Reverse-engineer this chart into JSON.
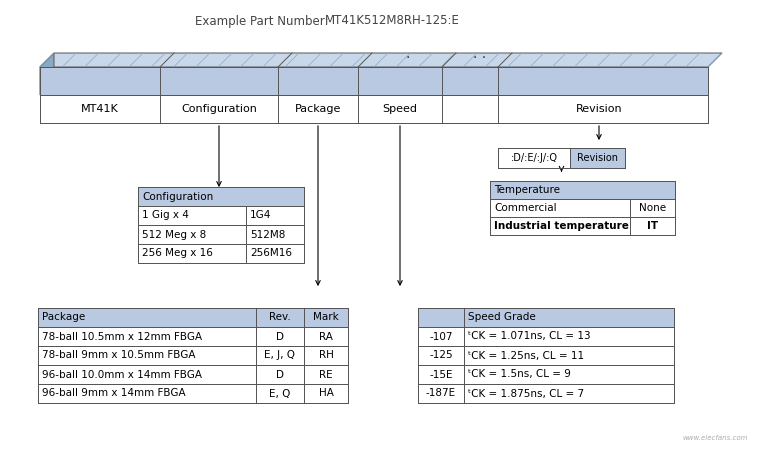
{
  "title_label": "Example Part Number:",
  "title_part": "MT41K512M8RH-125:E",
  "bg_color": "#ffffff",
  "header_fill": "#b8c9e1",
  "cell_fill": "#ffffff",
  "border_color": "#555555",
  "top_bar_segments": [
    "MT41K",
    "Configuration",
    "Package",
    "Speed",
    "",
    "Revision"
  ],
  "seg_positions": [
    0,
    120,
    238,
    318,
    402,
    458,
    660
  ],
  "revision_box_left": ":D/:E/:J/:Q",
  "revision_box_right": "Revision",
  "config_header": "Configuration",
  "config_rows": [
    [
      "1 Gig x 4",
      "1G4"
    ],
    [
      "512 Meg x 8",
      "512M8"
    ],
    [
      "256 Meg x 16",
      "256M16"
    ]
  ],
  "temp_header": "Temperature",
  "temp_rows": [
    [
      "Commercial",
      "None"
    ],
    [
      "Industrial temperature",
      "IT"
    ]
  ],
  "package_headers": [
    "Package",
    "Rev.",
    "Mark"
  ],
  "package_rows": [
    [
      "78-ball 10.5mm x 12mm FBGA",
      "D",
      "RA"
    ],
    [
      "78-ball 9mm x 10.5mm FBGA",
      "E, J, Q",
      "RH"
    ],
    [
      "96-ball 10.0mm x 14mm FBGA",
      "D",
      "RE"
    ],
    [
      "96-ball 9mm x 14mm FBGA",
      "E, Q",
      "HA"
    ]
  ],
  "speed_header": "Speed Grade",
  "speed_rows": [
    [
      "-107",
      "ᵗCK = 1.071ns, CL = 13"
    ],
    [
      "-125",
      "ᵗCK = 1.25ns, CL = 11"
    ],
    [
      "-15E",
      "ᵗCK = 1.5ns, CL = 9"
    ],
    [
      "-187E",
      "ᵗCK = 1.875ns, CL = 7"
    ]
  ],
  "watermark": "www.elecfans.com"
}
